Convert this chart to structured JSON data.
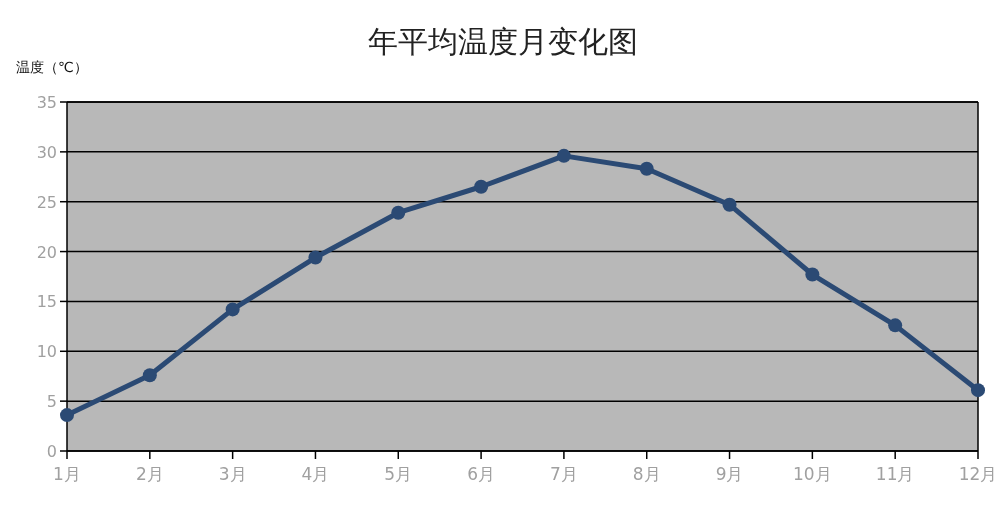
{
  "chart_data": {
    "type": "line",
    "title": "年平均温度月变化图",
    "ylabel": "温度（℃）",
    "categories": [
      "1月",
      "2月",
      "3月",
      "4月",
      "5月",
      "6月",
      "7月",
      "8月",
      "9月",
      "10月",
      "11月",
      "12月"
    ],
    "series": [
      {
        "color": "#2b4a74",
        "values": [
          3.6,
          7.6,
          14.2,
          19.4,
          23.9,
          26.5,
          29.6,
          28.3,
          24.7,
          17.7,
          12.6,
          6.1
        ]
      }
    ],
    "ylim": [
      0,
      35
    ],
    "yticks": [
      0,
      5,
      10,
      15,
      20,
      25,
      30,
      35
    ],
    "grid": "y",
    "marker": "circle",
    "line_style": "solid"
  }
}
